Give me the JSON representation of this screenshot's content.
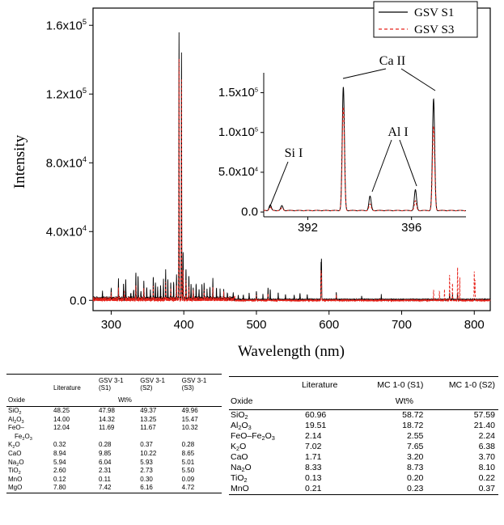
{
  "chart_data": [
    {
      "type": "line",
      "xlabel": "Wavelength (nm)",
      "ylabel": "Intensity",
      "xlim": [
        275,
        822
      ],
      "ylim": [
        -6000,
        170000
      ],
      "x_ticks": [
        300,
        400,
        500,
        600,
        700,
        800
      ],
      "x_tick_labels": [
        "300",
        "400",
        "500",
        "600",
        "700",
        "800"
      ],
      "y_ticks": [
        0,
        40000,
        80000,
        120000,
        160000
      ],
      "y_tick_labels": [
        "0.0",
        "4.0x10",
        "8.0x10",
        "1.2x10",
        "1.6x10"
      ],
      "y_tick_exponents": [
        "",
        "4",
        "4",
        "5",
        "5"
      ],
      "legend": {
        "position": "top-right",
        "entries": [
          "GSV S1",
          "GSV S3"
        ]
      },
      "series": [
        {
          "name": "GSV S1",
          "color": "#000000",
          "style": "solid",
          "peaks": [
            [
              288,
              4000
            ],
            [
              300,
              6000
            ],
            [
              310,
              11000
            ],
            [
              317,
              9000
            ],
            [
              320,
              12000
            ],
            [
              327,
              4000
            ],
            [
              331,
              6000
            ],
            [
              334,
              16000
            ],
            [
              337,
              14000
            ],
            [
              341,
              5000
            ],
            [
              345,
              10000
            ],
            [
              349,
              7000
            ],
            [
              354,
              5000
            ],
            [
              358,
              13000
            ],
            [
              361,
              9000
            ],
            [
              364,
              6000
            ],
            [
              368,
              8000
            ],
            [
              372,
              10000
            ],
            [
              375,
              16000
            ],
            [
              378,
              11000
            ],
            [
              382,
              9000
            ],
            [
              386,
              10000
            ],
            [
              390,
              14000
            ],
            [
              393.4,
              156000
            ],
            [
              396.8,
              145000
            ],
            [
              399,
              28000
            ],
            [
              403,
              18000
            ],
            [
              407,
              14000
            ],
            [
              410,
              9000
            ],
            [
              413,
              7000
            ],
            [
              417,
              9000
            ],
            [
              421,
              6000
            ],
            [
              425,
              8000
            ],
            [
              428,
              9000
            ],
            [
              432,
              5000
            ],
            [
              436,
              7000
            ],
            [
              440,
              11000
            ],
            [
              445,
              6000
            ],
            [
              450,
              5000
            ],
            [
              455,
              5000
            ],
            [
              460,
              4000
            ],
            [
              468,
              4000
            ],
            [
              475,
              3000
            ],
            [
              482,
              3000
            ],
            [
              490,
              4000
            ],
            [
              500,
              5000
            ],
            [
              509,
              3000
            ],
            [
              516,
              7000
            ],
            [
              519,
              6000
            ],
            [
              530,
              4000
            ],
            [
              540,
              3000
            ],
            [
              552,
              3000
            ],
            [
              560,
              4000
            ],
            [
              570,
              3000
            ],
            [
              589,
              20000
            ],
            [
              589.6,
              23000
            ],
            [
              610,
              4000
            ],
            [
              645,
              2000
            ],
            [
              672,
              2500
            ],
            [
              766,
              4000
            ],
            [
              770,
              3000
            ],
            [
              777,
              4000
            ]
          ]
        },
        {
          "name": "GSV S3",
          "color": "#e8241c",
          "style": "dashed",
          "peaks": [
            [
              300,
              4000
            ],
            [
              310,
              6000
            ],
            [
              318,
              5000
            ],
            [
              334,
              9000
            ],
            [
              345,
              6000
            ],
            [
              358,
              8000
            ],
            [
              375,
              9000
            ],
            [
              382,
              6000
            ],
            [
              390,
              8000
            ],
            [
              393.4,
              141000
            ],
            [
              396.8,
              130000
            ],
            [
              399,
              18000
            ],
            [
              403,
              12000
            ],
            [
              407,
              8000
            ],
            [
              413,
              6000
            ],
            [
              428,
              5000
            ],
            [
              440,
              6000
            ],
            [
              455,
              4000
            ],
            [
              470,
              3000
            ],
            [
              500,
              3000
            ],
            [
              516,
              4000
            ],
            [
              589,
              16000
            ],
            [
              589.6,
              15000
            ],
            [
              610,
              3000
            ],
            [
              744,
              6000
            ],
            [
              752,
              5000
            ],
            [
              759,
              6000
            ],
            [
              766,
              15000
            ],
            [
              770,
              10000
            ],
            [
              777,
              20000
            ],
            [
              780,
              14000
            ],
            [
              800,
              17000
            ],
            [
              801,
              12000
            ]
          ]
        }
      ]
    },
    {
      "type": "line",
      "title": "inset",
      "xlim": [
        390.3,
        398.1
      ],
      "ylim": [
        -6000,
        175000
      ],
      "x_ticks": [
        392,
        396
      ],
      "x_tick_labels": [
        "392",
        "396"
      ],
      "y_ticks": [
        0,
        50000,
        100000,
        150000
      ],
      "y_tick_labels": [
        "0.0",
        "5.0x10",
        "1.0x10",
        "1.5x10"
      ],
      "y_tick_exponents": [
        "",
        "4",
        "5",
        "5"
      ],
      "annotations": [
        "Ca II",
        "Al I",
        "Si I"
      ],
      "series": [
        {
          "name": "GSV S1",
          "color": "#000000",
          "style": "solid",
          "peaks": [
            [
              390.55,
              7000
            ],
            [
              391.0,
              6000
            ],
            [
              393.37,
              155000
            ],
            [
              394.4,
              18000
            ],
            [
              396.15,
              26000
            ],
            [
              396.85,
              140000
            ]
          ]
        },
        {
          "name": "GSV S3",
          "color": "#e8241c",
          "style": "dashed",
          "peaks": [
            [
              390.55,
              4000
            ],
            [
              391.0,
              3000
            ],
            [
              393.37,
              130000
            ],
            [
              394.4,
              8000
            ],
            [
              396.15,
              12000
            ],
            [
              396.85,
              106000
            ]
          ]
        }
      ]
    }
  ],
  "table_left": {
    "headers": {
      "oxide": "Oxide",
      "literature": "Literature",
      "s1_a": "GSV 3-1",
      "s1_b": "(S1)",
      "s2_a": "GSV 3-1",
      "s2_b": "(S2)",
      "s3_a": "GSV 3-1",
      "s3_b": "(S3)",
      "unit": "Wt%"
    },
    "rows": [
      {
        "name": "SiO",
        "sub": "2",
        "lit": "48.25",
        "s1": "47.98",
        "s2": "49.37",
        "s3": "49.96"
      },
      {
        "name": "Al",
        "sub": "2",
        "name2": "O",
        "sub2": "3",
        "lit": "14.00",
        "s1": "14.32",
        "s2": "13.25",
        "s3": "15.47"
      },
      {
        "name": "FeO–",
        "line2": "Fe",
        "line2_sub": "2",
        "line2_mid": "O",
        "line2_sub2": "3",
        "lit": "12.04",
        "s1": "11.69",
        "s2": "11.67",
        "s3": "10.32"
      },
      {
        "name": "K",
        "sub": "2",
        "name2": "O",
        "lit": "0.32",
        "s1": "0.28",
        "s2": "0.37",
        "s3": "0.28"
      },
      {
        "name": "CaO",
        "lit": "8.94",
        "s1": "9.85",
        "s2": "10.22",
        "s3": "8.65"
      },
      {
        "name": "Na",
        "sub": "2",
        "name2": "O",
        "lit": "5.94",
        "s1": "6.04",
        "s2": "5.93",
        "s3": "5.01"
      },
      {
        "name": "TiO",
        "sub": "2",
        "lit": "2.60",
        "s1": "2.31",
        "s2": "2.73",
        "s3": "5.50"
      },
      {
        "name": "MnO",
        "lit": "0.12",
        "s1": "0.11",
        "s2": "0.30",
        "s3": "0.09"
      },
      {
        "name": "MgO",
        "lit": "7.80",
        "s1": "7.42",
        "s2": "6.16",
        "s3": "4.72"
      }
    ]
  },
  "table_right": {
    "headers": {
      "oxide": "Oxide",
      "literature": "Literature",
      "s1": "MC 1-0 (S1)",
      "s2": "MC 1-0 (S2)",
      "unit": "Wt%"
    },
    "rows": [
      {
        "name": "SiO",
        "sub": "2",
        "lit": "60.96",
        "s1": "58.72",
        "s2": "57.59"
      },
      {
        "name": "Al",
        "sub": "2",
        "name2": "O",
        "sub2": "3",
        "lit": "19.51",
        "s1": "18.72",
        "s2": "21.40"
      },
      {
        "name": "FeO–Fe",
        "sub": "2",
        "name2": "O",
        "sub2": "3",
        "lit": "2.14",
        "s1": "2.55",
        "s2": "2.24"
      },
      {
        "name": "K",
        "sub": "2",
        "name2": "O",
        "lit": "7.02",
        "s1": "7.65",
        "s2": "6.38"
      },
      {
        "name": "CaO",
        "lit": "1.71",
        "s1": "3.20",
        "s2": "3.70"
      },
      {
        "name": "Na",
        "sub": "2",
        "name2": "O",
        "lit": "8.33",
        "s1": "8.73",
        "s2": "8.10"
      },
      {
        "name": "TiO",
        "sub": "2",
        "lit": "0.13",
        "s1": "0.20",
        "s2": "0.22"
      },
      {
        "name": "MnO",
        "lit": "0.21",
        "s1": "0.23",
        "s2": "0.37"
      }
    ]
  }
}
